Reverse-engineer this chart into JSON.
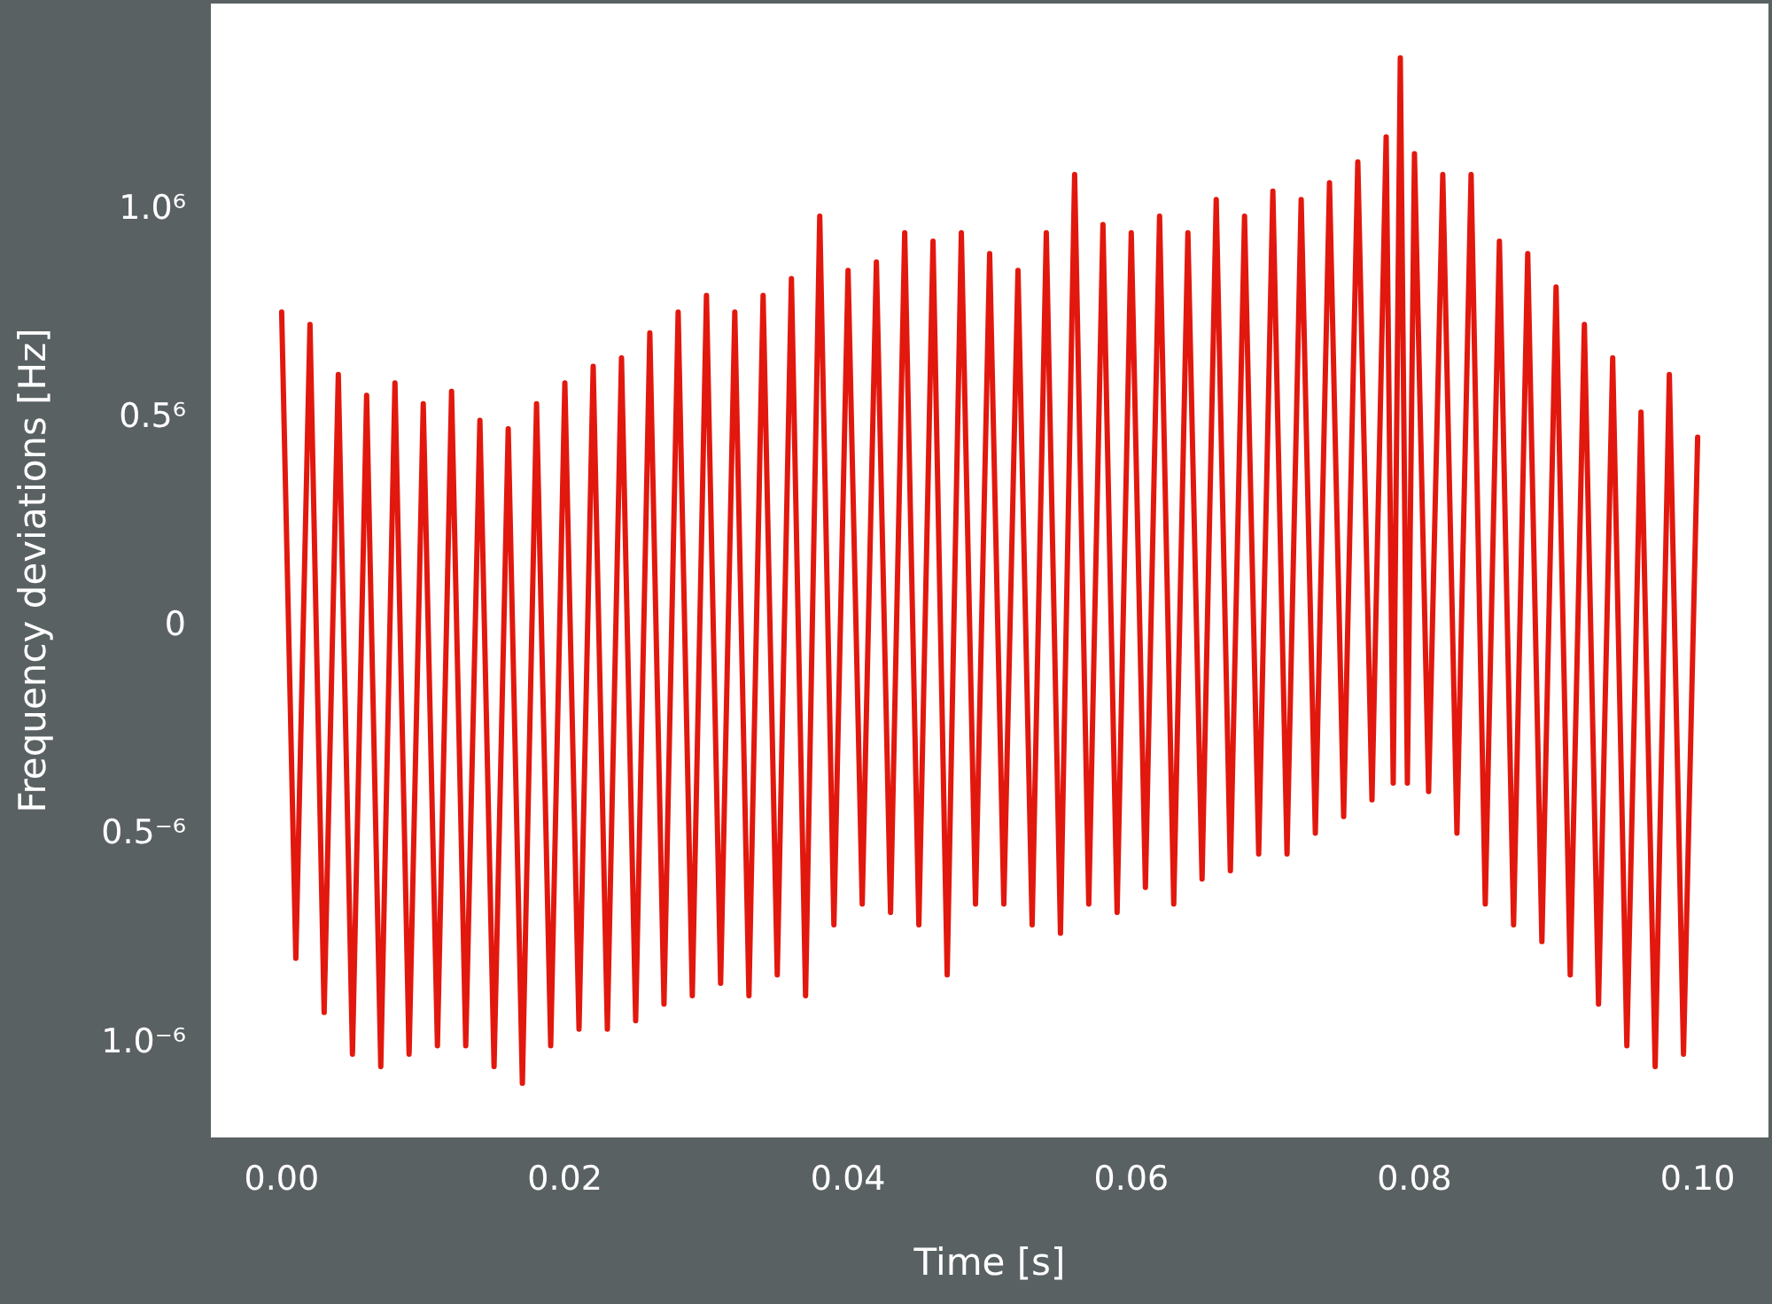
{
  "chart_data": {
    "type": "line",
    "xlabel": "Time [s]",
    "ylabel": "Frequency deviations [Hz]",
    "xlim": [
      -0.005,
      0.105
    ],
    "ylim": [
      -1.23,
      1.49
    ],
    "xticks": [
      {
        "value": 0,
        "label": "0.00"
      },
      {
        "value": 0.02,
        "label": "0.02"
      },
      {
        "value": 0.04,
        "label": "0.04"
      },
      {
        "value": 0.06,
        "label": "0.06"
      },
      {
        "value": 0.08,
        "label": "0.08"
      },
      {
        "value": 0.1,
        "label": "0.10"
      }
    ],
    "yticks": [
      {
        "value": -1,
        "label": "1.0⁻⁶"
      },
      {
        "value": -0.5,
        "label": "0.5⁻⁶"
      },
      0,
      {
        "value": 0.5,
        "label": "0.5⁶"
      },
      {
        "value": 1,
        "label": "1.0⁶"
      }
    ],
    "grid": false,
    "marker": "none",
    "line_style": "solid",
    "series": [
      {
        "color": "#e2180e",
        "x": [
          0,
          0.001,
          0.002,
          0.003,
          0.004,
          0.005,
          0.006,
          0.007,
          0.008,
          0.009,
          0.01,
          0.011,
          0.012,
          0.013,
          0.014,
          0.015,
          0.016,
          0.017,
          0.018,
          0.019,
          0.02,
          0.021,
          0.022,
          0.023,
          0.024,
          0.025,
          0.026,
          0.027,
          0.028,
          0.029,
          0.03,
          0.031,
          0.032,
          0.033,
          0.034,
          0.035,
          0.036,
          0.037,
          0.038,
          0.039,
          0.04,
          0.041,
          0.042,
          0.043,
          0.044,
          0.045,
          0.046,
          0.047,
          0.048,
          0.049,
          0.05,
          0.051,
          0.052,
          0.053,
          0.054,
          0.055,
          0.056,
          0.057,
          0.058,
          0.059,
          0.06,
          0.061,
          0.062,
          0.063,
          0.064,
          0.065,
          0.066,
          0.067,
          0.068,
          0.069,
          0.07,
          0.071,
          0.072,
          0.073,
          0.074,
          0.075,
          0.076,
          0.077,
          0.078,
          0.0785,
          0.079,
          0.0795,
          0.08,
          0.081,
          0.082,
          0.083,
          0.084,
          0.085,
          0.086,
          0.087,
          0.088,
          0.089,
          0.09,
          0.091,
          0.092,
          0.093,
          0.094,
          0.095,
          0.096,
          0.097,
          0.098,
          0.099,
          0.1
        ],
        "values": [
          0.75,
          -0.8,
          0.72,
          -0.93,
          0.6,
          -1.03,
          0.55,
          -1.06,
          0.58,
          -1.03,
          0.53,
          -1.01,
          0.56,
          -1.01,
          0.49,
          -1.06,
          0.47,
          -1.1,
          0.53,
          -1.01,
          0.58,
          -0.97,
          0.62,
          -0.97,
          0.64,
          -0.95,
          0.7,
          -0.91,
          0.75,
          -0.89,
          0.79,
          -0.86,
          0.75,
          -0.89,
          0.79,
          -0.84,
          0.83,
          -0.89,
          0.98,
          -0.72,
          0.85,
          -0.67,
          0.87,
          -0.69,
          0.94,
          -0.72,
          0.92,
          -0.84,
          0.94,
          -0.67,
          0.89,
          -0.67,
          0.85,
          -0.72,
          0.94,
          -0.74,
          1.08,
          -0.67,
          0.96,
          -0.69,
          0.94,
          -0.63,
          0.98,
          -0.67,
          0.94,
          -0.61,
          1.02,
          -0.59,
          0.98,
          -0.55,
          1.04,
          -0.55,
          1.02,
          -0.5,
          1.06,
          -0.46,
          1.11,
          -0.42,
          1.17,
          -0.38,
          1.36,
          -0.38,
          1.13,
          -0.4,
          1.08,
          -0.5,
          1.08,
          -0.67,
          0.92,
          -0.72,
          0.89,
          -0.76,
          0.81,
          -0.84,
          0.72,
          -0.91,
          0.64,
          -1.01,
          0.51,
          -1.06,
          0.6,
          -1.03,
          0.45
        ]
      }
    ]
  }
}
